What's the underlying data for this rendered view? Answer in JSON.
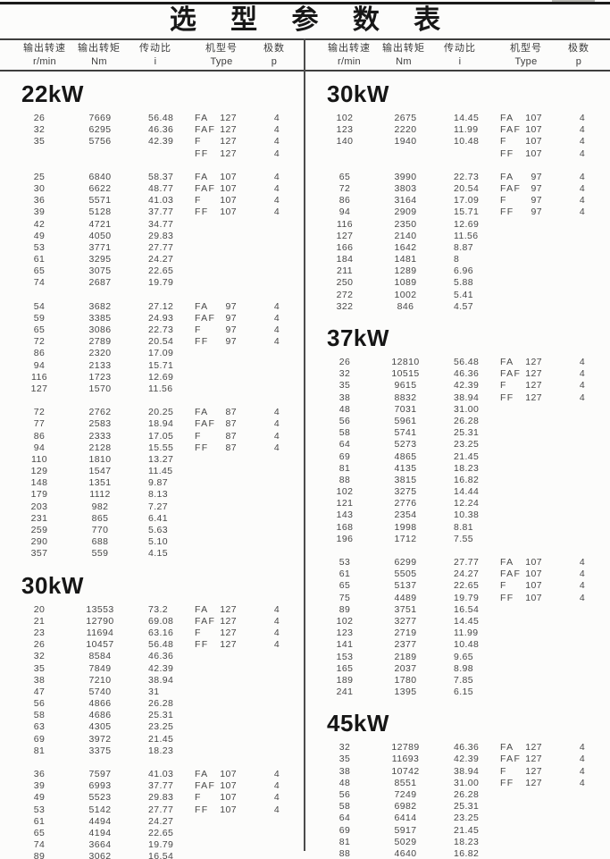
{
  "title": "选 型 参 数 表",
  "columns": [
    {
      "zh": "输出转速",
      "unit": "r/min"
    },
    {
      "zh": "输出转矩",
      "unit": "Nm"
    },
    {
      "zh": "传动比",
      "unit": "i"
    },
    {
      "zh": "机型号",
      "unit": "Type"
    },
    {
      "zh": "极数",
      "unit": "p"
    }
  ],
  "table": {
    "left": [
      {
        "power": "22kW",
        "groups": [
          [
            [
              "26",
              "7669",
              "56.48",
              "FA",
              "127",
              "4"
            ],
            [
              "32",
              "6295",
              "46.36",
              "FAF",
              "127",
              "4"
            ],
            [
              "35",
              "5756",
              "42.39",
              "F",
              "127",
              "4"
            ],
            [
              "",
              "",
              "",
              "FF",
              "127",
              "4"
            ]
          ],
          [
            [
              "25",
              "6840",
              "58.37",
              "FA",
              "107",
              "4"
            ],
            [
              "30",
              "6622",
              "48.77",
              "FAF",
              "107",
              "4"
            ],
            [
              "36",
              "5571",
              "41.03",
              "F",
              "107",
              "4"
            ],
            [
              "39",
              "5128",
              "37.77",
              "FF",
              "107",
              "4"
            ],
            [
              "42",
              "4721",
              "34.77",
              "",
              "",
              ""
            ],
            [
              "49",
              "4050",
              "29.83",
              "",
              "",
              ""
            ],
            [
              "53",
              "3771",
              "27.77",
              "",
              "",
              ""
            ],
            [
              "61",
              "3295",
              "24.27",
              "",
              "",
              ""
            ],
            [
              "65",
              "3075",
              "22.65",
              "",
              "",
              ""
            ],
            [
              "74",
              "2687",
              "19.79",
              "",
              "",
              ""
            ]
          ],
          [
            [
              "54",
              "3682",
              "27.12",
              "FA",
              "97",
              "4"
            ],
            [
              "59",
              "3385",
              "24.93",
              "FAF",
              "97",
              "4"
            ],
            [
              "65",
              "3086",
              "22.73",
              "F",
              "97",
              "4"
            ],
            [
              "72",
              "2789",
              "20.54",
              "FF",
              "97",
              "4"
            ],
            [
              "86",
              "2320",
              "17.09",
              "",
              "",
              ""
            ],
            [
              "94",
              "2133",
              "15.71",
              "",
              "",
              ""
            ],
            [
              "116",
              "1723",
              "12.69",
              "",
              "",
              ""
            ],
            [
              "127",
              "1570",
              "11.56",
              "",
              "",
              ""
            ]
          ],
          [
            [
              "72",
              "2762",
              "20.25",
              "FA",
              "87",
              "4"
            ],
            [
              "77",
              "2583",
              "18.94",
              "FAF",
              "87",
              "4"
            ],
            [
              "86",
              "2333",
              "17.05",
              "F",
              "87",
              "4"
            ],
            [
              "94",
              "2128",
              "15.55",
              "FF",
              "87",
              "4"
            ],
            [
              "110",
              "1810",
              "13.27",
              "",
              "",
              ""
            ],
            [
              "129",
              "1547",
              "11.45",
              "",
              "",
              ""
            ],
            [
              "148",
              "1351",
              "9.87",
              "",
              "",
              ""
            ],
            [
              "179",
              "1112",
              "8.13",
              "",
              "",
              ""
            ],
            [
              "203",
              "982",
              "7.27",
              "",
              "",
              ""
            ],
            [
              "231",
              "865",
              "6.41",
              "",
              "",
              ""
            ],
            [
              "259",
              "770",
              "5.63",
              "",
              "",
              ""
            ],
            [
              "290",
              "688",
              "5.10",
              "",
              "",
              ""
            ],
            [
              "357",
              "559",
              "4.15",
              "",
              "",
              ""
            ]
          ]
        ]
      },
      {
        "power": "30kW",
        "groups": [
          [
            [
              "20",
              "13553",
              "73.2",
              "FA",
              "127",
              "4"
            ],
            [
              "21",
              "12790",
              "69.08",
              "FAF",
              "127",
              "4"
            ],
            [
              "23",
              "11694",
              "63.16",
              "F",
              "127",
              "4"
            ],
            [
              "26",
              "10457",
              "56.48",
              "FF",
              "127",
              "4"
            ],
            [
              "32",
              "8584",
              "46.36",
              "",
              "",
              ""
            ],
            [
              "35",
              "7849",
              "42.39",
              "",
              "",
              ""
            ],
            [
              "38",
              "7210",
              "38.94",
              "",
              "",
              ""
            ],
            [
              "47",
              "5740",
              "31",
              "",
              "",
              ""
            ],
            [
              "56",
              "4866",
              "26.28",
              "",
              "",
              ""
            ],
            [
              "58",
              "4686",
              "25.31",
              "",
              "",
              ""
            ],
            [
              "63",
              "4305",
              "23.25",
              "",
              "",
              ""
            ],
            [
              "69",
              "3972",
              "21.45",
              "",
              "",
              ""
            ],
            [
              "81",
              "3375",
              "18.23",
              "",
              "",
              ""
            ]
          ],
          [
            [
              "36",
              "7597",
              "41.03",
              "FA",
              "107",
              "4"
            ],
            [
              "39",
              "6993",
              "37.77",
              "FAF",
              "107",
              "4"
            ],
            [
              "49",
              "5523",
              "29.83",
              "F",
              "107",
              "4"
            ],
            [
              "53",
              "5142",
              "27.77",
              "FF",
              "107",
              "4"
            ],
            [
              "61",
              "4494",
              "24.27",
              "",
              "",
              ""
            ],
            [
              "65",
              "4194",
              "22.65",
              "",
              "",
              ""
            ],
            [
              "74",
              "3664",
              "19.79",
              "",
              "",
              ""
            ],
            [
              "89",
              "3062",
              "16.54",
              "",
              "",
              ""
            ]
          ]
        ]
      }
    ],
    "right": [
      {
        "power": "30kW",
        "groups": [
          [
            [
              "102",
              "2675",
              "14.45",
              "FA",
              "107",
              "4"
            ],
            [
              "123",
              "2220",
              "11.99",
              "FAF",
              "107",
              "4"
            ],
            [
              "140",
              "1940",
              "10.48",
              "F",
              "107",
              "4"
            ],
            [
              "",
              "",
              "",
              "FF",
              "107",
              "4"
            ]
          ],
          [
            [
              "65",
              "3990",
              "22.73",
              "FA",
              "97",
              "4"
            ],
            [
              "72",
              "3803",
              "20.54",
              "FAF",
              "97",
              "4"
            ],
            [
              "86",
              "3164",
              "17.09",
              "F",
              "97",
              "4"
            ],
            [
              "94",
              "2909",
              "15.71",
              "FF",
              "97",
              "4"
            ],
            [
              "116",
              "2350",
              "12.69",
              "",
              "",
              ""
            ],
            [
              "127",
              "2140",
              "11.56",
              "",
              "",
              ""
            ],
            [
              "166",
              "1642",
              "8.87",
              "",
              "",
              ""
            ],
            [
              "184",
              "1481",
              "8",
              "",
              "",
              ""
            ],
            [
              "211",
              "1289",
              "6.96",
              "",
              "",
              ""
            ],
            [
              "250",
              "1089",
              "5.88",
              "",
              "",
              ""
            ],
            [
              "272",
              "1002",
              "5.41",
              "",
              "",
              ""
            ],
            [
              "322",
              "846",
              "4.57",
              "",
              "",
              ""
            ]
          ]
        ]
      },
      {
        "power": "37kW",
        "groups": [
          [
            [
              "26",
              "12810",
              "56.48",
              "FA",
              "127",
              "4"
            ],
            [
              "32",
              "10515",
              "46.36",
              "FAF",
              "127",
              "4"
            ],
            [
              "35",
              "9615",
              "42.39",
              "F",
              "127",
              "4"
            ],
            [
              "38",
              "8832",
              "38.94",
              "FF",
              "127",
              "4"
            ],
            [
              "48",
              "7031",
              "31.00",
              "",
              "",
              ""
            ],
            [
              "56",
              "5961",
              "26.28",
              "",
              "",
              ""
            ],
            [
              "58",
              "5741",
              "25.31",
              "",
              "",
              ""
            ],
            [
              "64",
              "5273",
              "23.25",
              "",
              "",
              ""
            ],
            [
              "69",
              "4865",
              "21.45",
              "",
              "",
              ""
            ],
            [
              "81",
              "4135",
              "18.23",
              "",
              "",
              ""
            ],
            [
              "88",
              "3815",
              "16.82",
              "",
              "",
              ""
            ],
            [
              "102",
              "3275",
              "14.44",
              "",
              "",
              ""
            ],
            [
              "121",
              "2776",
              "12.24",
              "",
              "",
              ""
            ],
            [
              "143",
              "2354",
              "10.38",
              "",
              "",
              ""
            ],
            [
              "168",
              "1998",
              "8.81",
              "",
              "",
              ""
            ],
            [
              "196",
              "1712",
              "7.55",
              "",
              "",
              ""
            ]
          ],
          [
            [
              "53",
              "6299",
              "27.77",
              "FA",
              "107",
              "4"
            ],
            [
              "61",
              "5505",
              "24.27",
              "FAF",
              "107",
              "4"
            ],
            [
              "65",
              "5137",
              "22.65",
              "F",
              "107",
              "4"
            ],
            [
              "75",
              "4489",
              "19.79",
              "FF",
              "107",
              "4"
            ],
            [
              "89",
              "3751",
              "16.54",
              "",
              "",
              ""
            ],
            [
              "102",
              "3277",
              "14.45",
              "",
              "",
              ""
            ],
            [
              "123",
              "2719",
              "11.99",
              "",
              "",
              ""
            ],
            [
              "141",
              "2377",
              "10.48",
              "",
              "",
              ""
            ],
            [
              "153",
              "2189",
              "9.65",
              "",
              "",
              ""
            ],
            [
              "165",
              "2037",
              "8.98",
              "",
              "",
              ""
            ],
            [
              "189",
              "1780",
              "7.85",
              "",
              "",
              ""
            ],
            [
              "241",
              "1395",
              "6.15",
              "",
              "",
              ""
            ]
          ]
        ]
      },
      {
        "power": "45kW",
        "groups": [
          [
            [
              "32",
              "12789",
              "46.36",
              "FA",
              "127",
              "4"
            ],
            [
              "35",
              "11693",
              "42.39",
              "FAF",
              "127",
              "4"
            ],
            [
              "38",
              "10742",
              "38.94",
              "F",
              "127",
              "4"
            ],
            [
              "48",
              "8551",
              "31.00",
              "FF",
              "127",
              "4"
            ],
            [
              "56",
              "7249",
              "26.28",
              "",
              "",
              ""
            ],
            [
              "58",
              "6982",
              "25.31",
              "",
              "",
              ""
            ],
            [
              "64",
              "6414",
              "23.25",
              "",
              "",
              ""
            ],
            [
              "69",
              "5917",
              "21.45",
              "",
              "",
              ""
            ],
            [
              "81",
              "5029",
              "18.23",
              "",
              "",
              ""
            ],
            [
              "88",
              "4640",
              "16.82",
              "",
              "",
              ""
            ]
          ]
        ]
      }
    ]
  }
}
